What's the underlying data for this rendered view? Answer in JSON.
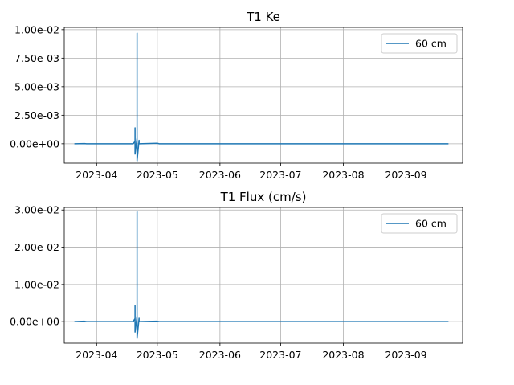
{
  "chart_data": [
    {
      "type": "line",
      "title": "T1 Ke",
      "xlabel": "",
      "ylabel": "",
      "x_range": [
        "2023-03-16",
        "2023-09-29"
      ],
      "ylim": [
        -0.0017,
        0.0102
      ],
      "y_ticks": [
        0.0,
        0.0025,
        0.005,
        0.0075,
        0.01
      ],
      "y_tick_labels": [
        "0.00e+00",
        "2.50e-03",
        "5.00e-03",
        "7.50e-03",
        "1.00e-02"
      ],
      "x_ticks": [
        "2023-04-01",
        "2023-05-01",
        "2023-06-01",
        "2023-07-01",
        "2023-08-01",
        "2023-09-01"
      ],
      "x_tick_labels": [
        "2023-04",
        "2023-05",
        "2023-06",
        "2023-07",
        "2023-08",
        "2023-09"
      ],
      "grid": true,
      "legend_position": "top-right",
      "series": [
        {
          "name": "60 cm",
          "color": "#1f77b4",
          "points": [
            [
              "2023-03-21",
              0.0
            ],
            [
              "2023-03-26",
              2e-05
            ],
            [
              "2023-03-27",
              0.0
            ],
            [
              "2023-04-10",
              0.0
            ],
            [
              "2023-04-19",
              0.0
            ],
            [
              "2023-04-20",
              0.0002
            ],
            [
              "2023-04-20",
              0.0014
            ],
            [
              "2023-04-20",
              -0.0009
            ],
            [
              "2023-04-21",
              0.0005
            ],
            [
              "2023-04-21",
              0.0097
            ],
            [
              "2023-04-21",
              -0.0012
            ],
            [
              "2023-04-21",
              -0.0015
            ],
            [
              "2023-04-22",
              0.0003
            ],
            [
              "2023-04-22",
              0.0
            ],
            [
              "2023-05-01",
              4e-05
            ],
            [
              "2023-05-02",
              0.0
            ],
            [
              "2023-06-15",
              0.0
            ],
            [
              "2023-08-01",
              0.0
            ],
            [
              "2023-09-22",
              0.0
            ]
          ]
        }
      ]
    },
    {
      "type": "line",
      "title": "T1 Flux (cm/s)",
      "xlabel": "",
      "ylabel": "",
      "x_range": [
        "2023-03-16",
        "2023-09-29"
      ],
      "ylim": [
        -0.0058,
        0.0307
      ],
      "y_ticks": [
        0.0,
        0.01,
        0.02,
        0.03
      ],
      "y_tick_labels": [
        "0.00e+00",
        "1.00e-02",
        "2.00e-02",
        "3.00e-02"
      ],
      "x_ticks": [
        "2023-04-01",
        "2023-05-01",
        "2023-06-01",
        "2023-07-01",
        "2023-08-01",
        "2023-09-01"
      ],
      "x_tick_labels": [
        "2023-04",
        "2023-05",
        "2023-06",
        "2023-07",
        "2023-08",
        "2023-09"
      ],
      "grid": true,
      "legend_position": "top-right",
      "series": [
        {
          "name": "60 cm",
          "color": "#1f77b4",
          "points": [
            [
              "2023-03-21",
              0.0
            ],
            [
              "2023-03-26",
              0.0001
            ],
            [
              "2023-03-27",
              0.0
            ],
            [
              "2023-04-10",
              0.0
            ],
            [
              "2023-04-19",
              0.0
            ],
            [
              "2023-04-20",
              0.0008
            ],
            [
              "2023-04-20",
              0.0043
            ],
            [
              "2023-04-20",
              -0.0028
            ],
            [
              "2023-04-21",
              0.0015
            ],
            [
              "2023-04-21",
              0.0295
            ],
            [
              "2023-04-21",
              -0.0036
            ],
            [
              "2023-04-21",
              -0.0045
            ],
            [
              "2023-04-22",
              0.0009
            ],
            [
              "2023-04-22",
              0.0
            ],
            [
              "2023-05-01",
              0.0001
            ],
            [
              "2023-05-02",
              0.0
            ],
            [
              "2023-06-15",
              0.0
            ],
            [
              "2023-08-01",
              0.0
            ],
            [
              "2023-09-22",
              0.0
            ]
          ]
        }
      ]
    }
  ]
}
